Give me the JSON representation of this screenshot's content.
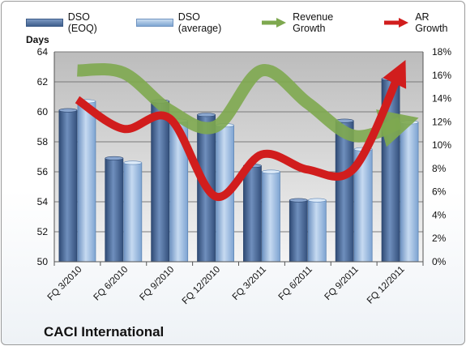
{
  "company_label": "CACI International",
  "chart_data": {
    "type": "bar",
    "title": "",
    "ylabel": "Days",
    "categories": [
      "FQ 3/2010",
      "FQ 6/2010",
      "FQ 9/2010",
      "FQ 12/2010",
      "FQ 3/2011",
      "FQ 6/2011",
      "FQ 9/2011",
      "FQ 12/2011"
    ],
    "ylim": [
      50,
      64
    ],
    "yticks": [
      50,
      52,
      54,
      56,
      58,
      60,
      62,
      64
    ],
    "y2lim": [
      0,
      18
    ],
    "y2ticks": [
      "0%",
      "2%",
      "4%",
      "6%",
      "8%",
      "10%",
      "12%",
      "14%",
      "16%",
      "18%"
    ],
    "grid": true,
    "legend_position": "top",
    "series": [
      {
        "name": "DSO (EOQ)",
        "kind": "bar",
        "axis": "left",
        "color": "#4f6fa0",
        "values": [
          60.1,
          56.9,
          60.7,
          59.8,
          56.4,
          54.1,
          59.4,
          62.2
        ]
      },
      {
        "name": "DSO (average)",
        "kind": "bar",
        "axis": "left",
        "color": "#9dbfe6",
        "values": [
          60.7,
          56.6,
          59.4,
          59.1,
          56.0,
          54.1,
          57.5,
          59.3
        ]
      },
      {
        "name": "Revenue Growth",
        "kind": "line",
        "axis": "right",
        "unit": "%",
        "color": "#7ea84f",
        "values": [
          16.4,
          16.2,
          13.0,
          11.6,
          16.4,
          13.6,
          10.8,
          11.9
        ]
      },
      {
        "name": "AR Growth",
        "kind": "line",
        "axis": "right",
        "unit": "%",
        "color": "#d11d1d",
        "values": [
          13.9,
          11.4,
          12.3,
          5.6,
          9.2,
          7.9,
          8.0,
          16.3
        ]
      }
    ]
  }
}
